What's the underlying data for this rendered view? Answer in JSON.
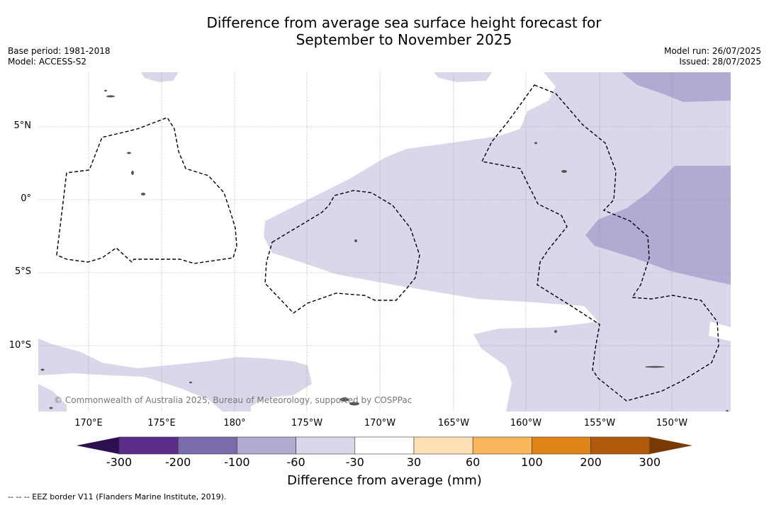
{
  "title_line1": "Difference from average sea surface height forecast for",
  "title_line2": "September to November 2025",
  "base_period": "Base period: 1981-2018",
  "model": "Model: ACCESS-S2",
  "model_run": "Model run: 26/07/2025",
  "issued": "Issued: 28/07/2025",
  "copyright": "© Commonwealth of Australia 2025, Bureau of Meteorology, supported by COSPPac",
  "lat_labels": [
    "5°N",
    "0°",
    "5°S",
    "10°S"
  ],
  "lon_labels": [
    "170°E",
    "175°E",
    "180°",
    "175°W",
    "170°W",
    "165°W",
    "160°W",
    "155°W",
    "150°W"
  ],
  "colorbar": {
    "ticks": [
      "-300",
      "-200",
      "-100",
      "-60",
      "-30",
      "30",
      "60",
      "100",
      "200",
      "300"
    ],
    "colors": [
      "#2e0f4f",
      "#5a2d8a",
      "#7b6bab",
      "#b1aad2",
      "#d8d8ea",
      "#ffffff",
      "#fddfb5",
      "#f8b55a",
      "#e08418",
      "#b05a0c",
      "#7a3a05"
    ],
    "label": "Difference from average (mm)"
  },
  "footnote": "--  --  -- EEZ border V11 (Flanders Marine Institute, 2019).",
  "colors": {
    "light_purple": "#d8d8ea",
    "mid_purple": "#b1aad2",
    "land": "#555555"
  }
}
